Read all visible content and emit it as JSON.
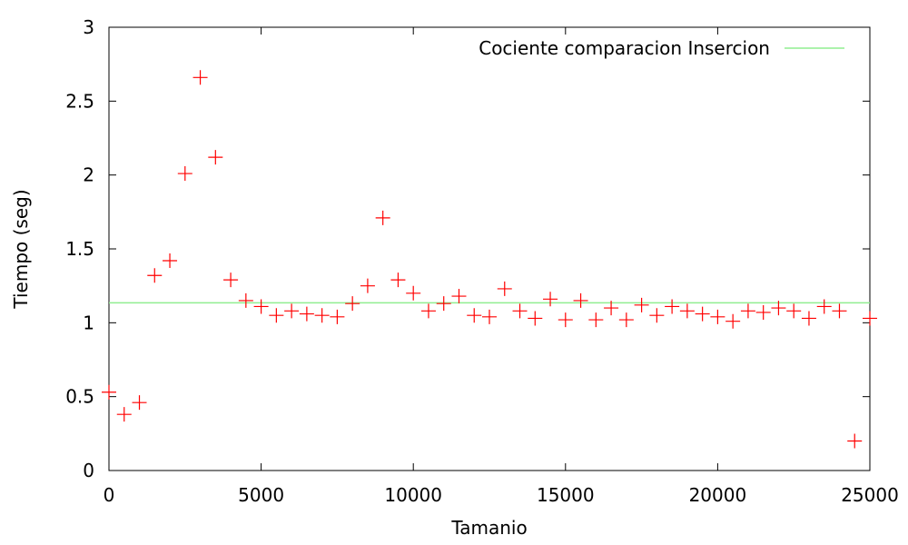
{
  "chart_data": {
    "type": "scatter",
    "title": "",
    "xlabel": "Tamanio",
    "ylabel": "Tiempo (seg)",
    "xlim": [
      0,
      25000
    ],
    "ylim": [
      0,
      3
    ],
    "xticks": [
      0,
      5000,
      10000,
      15000,
      20000,
      25000
    ],
    "yticks": [
      0,
      0.5,
      1,
      1.5,
      2,
      2.5,
      3
    ],
    "xtick_labels": [
      "0",
      "5000",
      "10000",
      "15000",
      "20000",
      "25000"
    ],
    "ytick_labels": [
      "0",
      "0.5",
      "1",
      "1.5",
      "2",
      "2.5",
      "3"
    ],
    "grid": false,
    "legend_position": "top-right",
    "series": [
      {
        "name": "",
        "marker": "plus",
        "color": "#ff0000",
        "x": [
          0,
          500,
          1000,
          1500,
          2000,
          2500,
          3000,
          3500,
          4000,
          4500,
          5000,
          5500,
          6000,
          6500,
          7000,
          7500,
          8000,
          8500,
          9000,
          9500,
          10000,
          10500,
          11000,
          11500,
          12000,
          12500,
          13000,
          13500,
          14000,
          14500,
          15000,
          15500,
          16000,
          16500,
          17000,
          17500,
          18000,
          18500,
          19000,
          19500,
          20000,
          20500,
          21000,
          21500,
          22000,
          22500,
          23000,
          23500,
          24000,
          24500,
          25000
        ],
        "y": [
          0.53,
          0.38,
          0.46,
          1.32,
          1.42,
          2.01,
          2.66,
          2.12,
          1.29,
          1.15,
          1.11,
          1.05,
          1.08,
          1.06,
          1.05,
          1.04,
          1.13,
          1.25,
          1.71,
          1.29,
          1.2,
          1.08,
          1.13,
          1.18,
          1.05,
          1.04,
          1.23,
          1.08,
          1.03,
          1.16,
          1.02,
          1.15,
          1.02,
          1.1,
          1.02,
          1.12,
          1.05,
          1.11,
          1.08,
          1.06,
          1.04,
          1.01,
          1.08,
          1.07,
          1.1,
          1.08,
          1.03,
          1.11,
          1.08,
          0.2,
          1.03
        ]
      },
      {
        "name": "Cociente comparacion Insercion",
        "type": "line",
        "color": "#90ee90",
        "x": [
          0,
          25000
        ],
        "y": [
          1.135,
          1.135
        ]
      }
    ]
  }
}
